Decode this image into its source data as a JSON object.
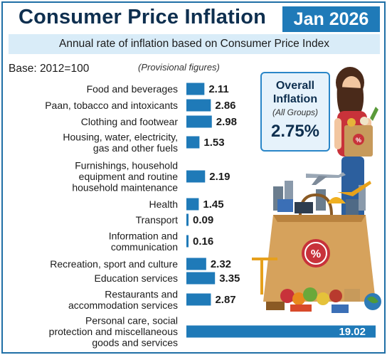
{
  "header": {
    "title": "Consumer Price Inflation",
    "date": "Jan 2026",
    "subtitle": "Annual rate of inflation based on Consumer Price Index"
  },
  "notes": {
    "base": "Base: 2012=100",
    "provisional": "(Provisional figures)"
  },
  "overall": {
    "title": "Overall Inflation",
    "subtitle": "(All Groups)",
    "value": "2.75%"
  },
  "colors": {
    "bar": "#1f7ab8",
    "accent": "#1f7ab8",
    "card_border": "#2a86c8",
    "card_fill": "#e6f2fb",
    "subtitle_bg": "#d9ecf8"
  },
  "chart_data": {
    "type": "bar",
    "orientation": "horizontal",
    "title": "Consumer Price Inflation",
    "categories": [
      [
        "Food and beverages"
      ],
      [
        "Paan, tobacco and intoxicants"
      ],
      [
        "Clothing and footwear"
      ],
      [
        "Housing, water, electricity,",
        "gas and other fuels"
      ],
      [
        "Furnishings, household",
        "equipment and routine",
        "household maintenance"
      ],
      [
        "Health"
      ],
      [
        "Transport"
      ],
      [
        "Information and",
        "communication"
      ],
      [
        "Recreation, sport and culture"
      ],
      [
        "Education services"
      ],
      [
        "Restaurants and",
        "accommodation services"
      ],
      [
        "Personal care, social",
        "protection and miscellaneous",
        "goods and services"
      ]
    ],
    "values": [
      2.11,
      2.86,
      2.98,
      1.53,
      2.19,
      1.45,
      0.09,
      0.16,
      2.32,
      3.35,
      2.87,
      19.02
    ],
    "value_labels": [
      "2.11",
      "2.86",
      "2.98",
      "1.53",
      "2.19",
      "1.45",
      "0.09",
      "0.16",
      "2.32",
      "3.35",
      "2.87",
      "19.02"
    ],
    "xlabel": "",
    "ylabel": "",
    "grid": false,
    "legend": "none"
  }
}
